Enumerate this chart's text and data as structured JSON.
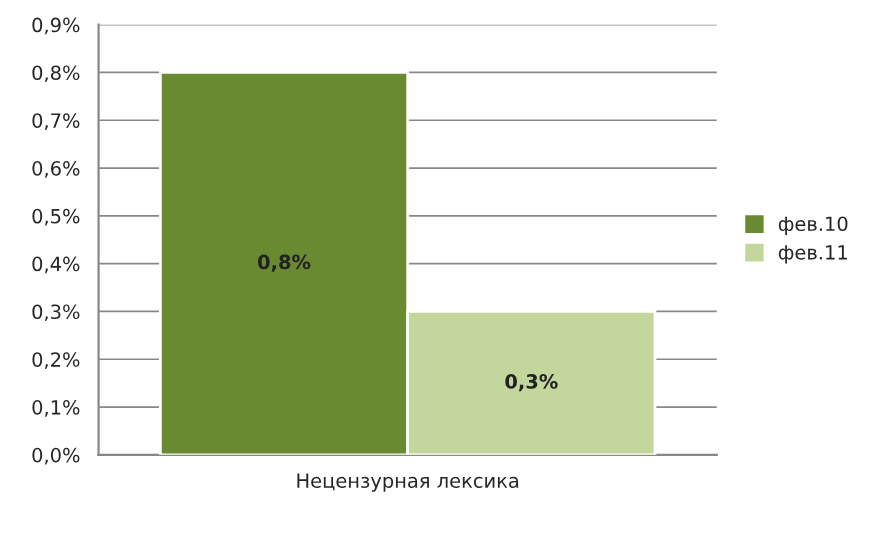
{
  "chart_data": {
    "type": "bar",
    "categories": [
      "Нецензурная лексика"
    ],
    "series": [
      {
        "name": "фев.10",
        "color": "#6a8a32",
        "values": [
          0.8
        ],
        "value_labels": [
          "0,8%"
        ]
      },
      {
        "name": "фев.11",
        "color": "#c3d69b",
        "values": [
          0.3
        ],
        "value_labels": [
          "0,3%"
        ]
      }
    ],
    "ylim": [
      0,
      0.9
    ],
    "yticks": [
      {
        "value": 0,
        "label": "0,0%"
      },
      {
        "value": 0.1,
        "label": "0,1%"
      },
      {
        "value": 0.2,
        "label": "0,2%"
      },
      {
        "value": 0.3,
        "label": "0,3%"
      },
      {
        "value": 0.4,
        "label": "0,4%"
      },
      {
        "value": 0.5,
        "label": "0,5%"
      },
      {
        "value": 0.6,
        "label": "0,6%"
      },
      {
        "value": 0.7,
        "label": "0,7%"
      },
      {
        "value": 0.8,
        "label": "0,8%"
      },
      {
        "value": 0.9,
        "label": "0,9%"
      }
    ],
    "grid": "y",
    "legend": "right"
  }
}
